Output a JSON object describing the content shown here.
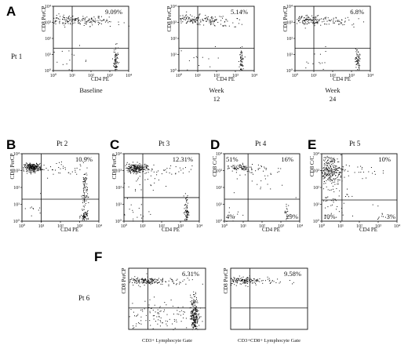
{
  "panel_letters": [
    "A",
    "B",
    "C",
    "D",
    "E",
    "F"
  ],
  "patients": [
    "Pt 1",
    "Pt 2",
    "Pt 3",
    "Pt 4",
    "Pt 5",
    "Pt 6"
  ],
  "chart_data": [
    {
      "type": "scatter",
      "panel": "A",
      "patient": "Pt 1",
      "caption": [
        "Baseline"
      ],
      "xlabel": "CD4 PE",
      "ylabel": "CD8 PerCP",
      "xscale": "log",
      "yscale": "log",
      "xlim": [
        1,
        10000
      ],
      "ylim": [
        1,
        10000
      ],
      "xticks": [
        "10⁰",
        "10¹",
        "10²",
        "10³",
        "10⁴"
      ],
      "yticks": [
        "10⁰",
        "10¹",
        "10²",
        "10³",
        "10⁴"
      ],
      "gate": {
        "x": 10,
        "y": 25
      },
      "labels": [
        {
          "text": "9.09%",
          "quadrant": "upper-right"
        }
      ]
    },
    {
      "type": "scatter",
      "panel": "A",
      "patient": "Pt 1",
      "caption": [
        "Week",
        "12"
      ],
      "xlabel": "CD4 PE",
      "ylabel": "CD8 PerCP",
      "xscale": "log",
      "yscale": "log",
      "xlim": [
        1,
        10000
      ],
      "ylim": [
        1,
        10000
      ],
      "xticks": [
        "10⁰",
        "10¹",
        "10²",
        "10³",
        "10⁴"
      ],
      "yticks": [
        "10⁰",
        "10¹",
        "10²",
        "10³",
        "10⁴"
      ],
      "gate": {
        "x": 10,
        "y": 25
      },
      "labels": [
        {
          "text": "5.14%",
          "quadrant": "upper-right"
        }
      ]
    },
    {
      "type": "scatter",
      "panel": "A",
      "patient": "Pt 1",
      "caption": [
        "Week",
        "24"
      ],
      "xlabel": "CD4 PE",
      "ylabel": "CD8 PerCP",
      "xscale": "log",
      "yscale": "log",
      "xlim": [
        1,
        10000
      ],
      "ylim": [
        1,
        10000
      ],
      "xticks": [
        "10⁰",
        "10¹",
        "10²",
        "10³",
        "10⁴"
      ],
      "yticks": [
        "10⁰",
        "10¹",
        "10²",
        "10³",
        "10⁴"
      ],
      "gate": {
        "x": 10,
        "y": 25
      },
      "labels": [
        {
          "text": "6.8%",
          "quadrant": "upper-right"
        }
      ]
    },
    {
      "type": "scatter",
      "panel": "B",
      "patient": "Pt 2",
      "caption": [],
      "xlabel": "CD4 PE",
      "ylabel": "CD8 PerCP",
      "xscale": "log",
      "yscale": "log",
      "xlim": [
        1,
        10000
      ],
      "ylim": [
        1,
        10000
      ],
      "xticks": [
        "10⁰",
        "10¹",
        "10²",
        "10³",
        "10⁴"
      ],
      "yticks": [
        "10⁰",
        "10¹",
        "10²",
        "10³",
        "10⁴"
      ],
      "gate": {
        "x": 10,
        "y": 20
      },
      "labels": [
        {
          "text": "10.9%",
          "quadrant": "upper-right"
        }
      ]
    },
    {
      "type": "scatter",
      "panel": "C",
      "patient": "Pt 3",
      "caption": [],
      "xlabel": "CD4 PE",
      "ylabel": "CD8 PerCP",
      "xscale": "log",
      "yscale": "log",
      "xlim": [
        1,
        10000
      ],
      "ylim": [
        1,
        10000
      ],
      "xticks": [
        "10⁰",
        "10¹",
        "10²",
        "10³",
        "10⁴"
      ],
      "yticks": [
        "10⁰",
        "10¹",
        "10²",
        "10³",
        "10⁴"
      ],
      "gate": {
        "x": 10,
        "y": 25
      },
      "labels": [
        {
          "text": "12.31%",
          "quadrant": "upper-right"
        }
      ]
    },
    {
      "type": "scatter",
      "panel": "D",
      "patient": "Pt 4",
      "caption": [],
      "xlabel": "CD4 PE",
      "ylabel": "CD8 C/C",
      "xscale": "log",
      "yscale": "log",
      "xlim": [
        1,
        10000
      ],
      "ylim": [
        1,
        10000
      ],
      "xticks": [
        "10⁰",
        "10¹",
        "10²",
        "10³",
        "10⁴"
      ],
      "yticks": [
        "10⁰",
        "10¹",
        "10²",
        "10³",
        "10⁴"
      ],
      "gate": {
        "x": 18,
        "y": 20
      },
      "labels": [
        {
          "text": "51%",
          "quadrant": "upper-left"
        },
        {
          "text": "16%",
          "quadrant": "upper-right"
        },
        {
          "text": "4%",
          "quadrant": "lower-left"
        },
        {
          "text": "29%",
          "quadrant": "lower-right"
        }
      ]
    },
    {
      "type": "scatter",
      "panel": "E",
      "patient": "Pt 5",
      "caption": [],
      "xlabel": "CD4 PE",
      "ylabel": "CD8 C/C",
      "xscale": "log",
      "yscale": "log",
      "xlim": [
        1,
        10000
      ],
      "ylim": [
        1,
        10000
      ],
      "xticks": [
        "10⁰",
        "10¹",
        "10²",
        "10³",
        "10⁴"
      ],
      "yticks": [
        "10⁰",
        "10¹",
        "10²",
        "10³",
        "10⁴"
      ],
      "gate": {
        "x": 12,
        "y": 18
      },
      "labels": [
        {
          "text": "77%",
          "quadrant": "upper-left"
        },
        {
          "text": "10%",
          "quadrant": "upper-right"
        },
        {
          "text": "10%",
          "quadrant": "lower-left"
        },
        {
          "text": "3%",
          "quadrant": "lower-right"
        }
      ]
    },
    {
      "type": "scatter",
      "panel": "F",
      "patient": "Pt 6",
      "caption": [
        "CD3+ Lymphocyte Gate"
      ],
      "xlabel": "",
      "ylabel": "CD8 PerCP",
      "xscale": "log",
      "yscale": "log",
      "xlim": [
        1,
        10000
      ],
      "ylim": [
        1,
        10000
      ],
      "xticks": [],
      "yticks": [],
      "gate": {
        "x": 10,
        "y": 25
      },
      "labels": [
        {
          "text": "6.31%",
          "quadrant": "upper-right"
        }
      ]
    },
    {
      "type": "scatter",
      "panel": "F",
      "patient": "Pt 6",
      "caption": [
        "CD3+CD8+ Lymphocyte Gate"
      ],
      "xlabel": "",
      "ylabel": "CD8 PerCP",
      "xscale": "log",
      "yscale": "log",
      "xlim": [
        1,
        10000
      ],
      "ylim": [
        1,
        10000
      ],
      "xticks": [],
      "yticks": [],
      "gate": {
        "x": 10,
        "y": 25
      },
      "labels": [
        {
          "text": "9.58%",
          "quadrant": "upper-right"
        }
      ]
    }
  ]
}
